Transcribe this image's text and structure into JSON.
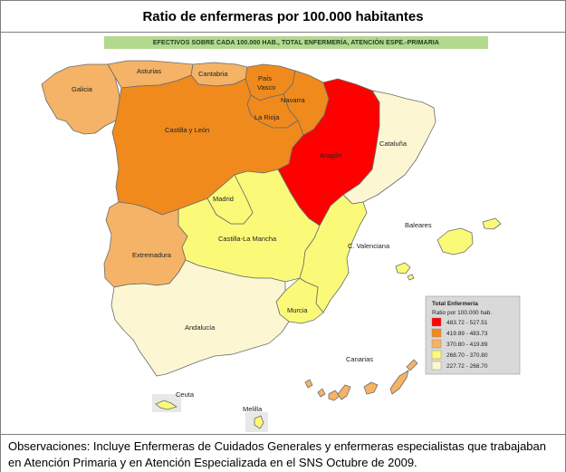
{
  "title": "Ratio de enfermeras por 100.000 habitantes",
  "subtitle": "EFECTIVOS SOBRE CADA 100.000 HAB., TOTAL ENFERMERÍA, ATENCIÓN ESPE.-PRIMARIA",
  "notes": "Observaciones: Incluye Enfermeras de Cuidados Generales y enfermeras especialistas que trabajaban en Atención Primaria y en Atención Especializada en el SNS Octubre de 2009.",
  "colors": {
    "class_1": "#ff0000",
    "class_2": "#f08a1c",
    "class_3": "#f4b366",
    "class_4": "#fafa78",
    "class_5": "#fcf7d2",
    "border": "#6b6b6b",
    "background": "#ffffff"
  },
  "legend": {
    "title": "Total Enfermería",
    "subtitle": "Ratio por 100.000 hab.",
    "items": [
      {
        "range": "483.72  -  527.51",
        "color": "#ff0000"
      },
      {
        "range": "419.89  -  483.73",
        "color": "#f08a1c"
      },
      {
        "range": "370.80  -  419.89",
        "color": "#f4b366"
      },
      {
        "range": "268.70  -  370.80",
        "color": "#fafa78"
      },
      {
        "range": "227.72  -  268.70",
        "color": "#fcf7d2"
      }
    ]
  },
  "regions": {
    "galicia": {
      "label": "Galicia",
      "color": "#f4b366"
    },
    "asturias": {
      "label": "Asturias",
      "color": "#f4b366"
    },
    "cantabria": {
      "label": "Cantabria",
      "color": "#f4b366"
    },
    "pais_vasco": {
      "label": "País Vasco",
      "color": "#f08a1c"
    },
    "navarra": {
      "label": "Navarra",
      "color": "#f08a1c"
    },
    "la_rioja": {
      "label": "La Rioja",
      "color": "#f08a1c"
    },
    "castilla_leon": {
      "label": "Castilla y León",
      "color": "#f08a1c"
    },
    "aragon": {
      "label": "Aragón",
      "color": "#ff0000"
    },
    "cataluna": {
      "label": "Cataluña",
      "color": "#fcf7d2"
    },
    "madrid": {
      "label": "Madrid",
      "color": "#fafa78"
    },
    "castilla_la_mancha": {
      "label": "Castilla-La Mancha",
      "color": "#fafa78"
    },
    "extremadura": {
      "label": "Extremadura",
      "color": "#f4b366"
    },
    "c_valenciana": {
      "label": "C. Valenciana",
      "color": "#fafa78"
    },
    "baleares": {
      "label": "Baleares",
      "color": "#fafa78"
    },
    "murcia": {
      "label": "Murcia",
      "color": "#fafa78"
    },
    "andalucia": {
      "label": "Andalucía",
      "color": "#fcf7d2"
    },
    "canarias": {
      "label": "Canarias",
      "color": "#f4b366"
    },
    "ceuta": {
      "label": "Ceuta",
      "color": "#fafa78"
    },
    "melilla": {
      "label": "Melilla",
      "color": "#fafa78"
    }
  }
}
